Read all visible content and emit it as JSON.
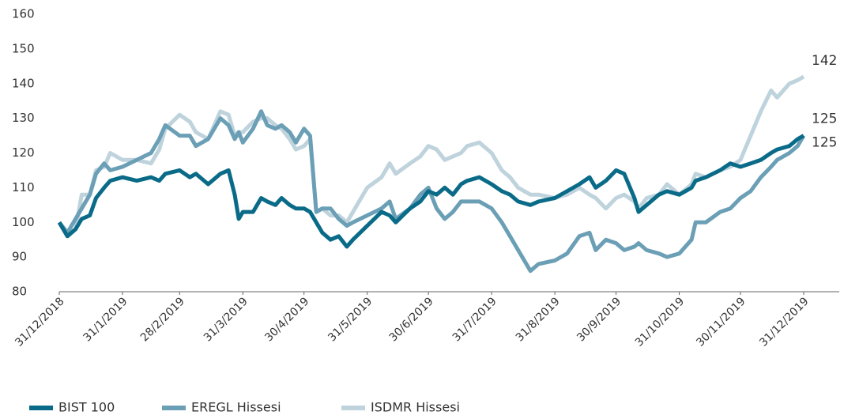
{
  "chart_data": {
    "type": "line",
    "x": [
      "31/12/2018",
      "4/1/2019",
      "8/1/2019",
      "11/1/2019",
      "15/1/2019",
      "18/1/2019",
      "22/1/2019",
      "25/1/2019",
      "31/1/2019",
      "7/2/2019",
      "14/2/2019",
      "18/2/2019",
      "21/2/2019",
      "28/2/2019",
      "5/3/2019",
      "8/3/2019",
      "14/3/2019",
      "20/3/2019",
      "24/3/2019",
      "27/3/2019",
      "29/3/2019",
      "31/3/2019",
      "5/4/2019",
      "9/4/2019",
      "12/4/2019",
      "16/4/2019",
      "19/4/2019",
      "23/4/2019",
      "26/4/2019",
      "30/4/2019",
      "3/5/2019",
      "6/5/2019",
      "9/5/2019",
      "13/5/2019",
      "17/5/2019",
      "21/5/2019",
      "24/5/2019",
      "31/5/2019",
      "7/6/2019",
      "11/6/2019",
      "14/6/2019",
      "21/6/2019",
      "26/6/2019",
      "30/6/2019",
      "4/7/2019",
      "8/7/2019",
      "12/7/2019",
      "16/7/2019",
      "19/7/2019",
      "25/7/2019",
      "31/7/2019",
      "5/8/2019",
      "9/8/2019",
      "13/8/2019",
      "19/8/2019",
      "23/8/2019",
      "31/8/2019",
      "6/9/2019",
      "12/9/2019",
      "17/9/2019",
      "20/9/2019",
      "25/9/2019",
      "30/9/2019",
      "4/10/2019",
      "9/10/2019",
      "11/10/2019",
      "15/10/2019",
      "21/10/2019",
      "25/10/2019",
      "31/10/2019",
      "6/11/2019",
      "8/11/2019",
      "13/11/2019",
      "20/11/2019",
      "25/11/2019",
      "30/11/2019",
      "5/12/2019",
      "10/12/2019",
      "15/12/2019",
      "18/12/2019",
      "24/12/2019",
      "28/12/2019",
      "31/12/2019"
    ],
    "series": [
      {
        "name": "BIST 100",
        "color": "#0a6b88",
        "values": [
          100,
          96,
          98,
          101,
          102,
          107,
          110,
          112,
          113,
          112,
          113,
          112,
          114,
          115,
          113,
          114,
          111,
          114,
          115,
          108,
          101,
          103,
          103,
          107,
          106,
          105,
          107,
          105,
          104,
          104,
          103,
          100,
          97,
          95,
          96,
          93,
          95,
          99,
          103,
          102,
          100,
          104,
          106,
          109,
          108,
          110,
          108,
          111,
          112,
          113,
          111,
          109,
          108,
          106,
          105,
          106,
          107,
          109,
          111,
          113,
          110,
          112,
          115,
          114,
          107,
          103,
          105,
          108,
          109,
          108,
          110,
          112,
          113,
          115,
          117,
          116,
          117,
          118,
          120,
          121,
          122,
          124,
          125
        ]
      },
      {
        "name": "EREGL Hissesi",
        "color": "#6b9fb6",
        "values": [
          100,
          97,
          101,
          104,
          108,
          114,
          117,
          115,
          116,
          118,
          120,
          124,
          128,
          125,
          125,
          122,
          124,
          130,
          128,
          124,
          126,
          123,
          127,
          132,
          128,
          127,
          128,
          126,
          123,
          127,
          125,
          103,
          104,
          104,
          101,
          99,
          100,
          102,
          104,
          106,
          101,
          104,
          108,
          110,
          104,
          101,
          103,
          106,
          106,
          106,
          104,
          100,
          96,
          92,
          86,
          88,
          89,
          91,
          96,
          97,
          92,
          95,
          94,
          92,
          93,
          94,
          92,
          91,
          90,
          91,
          95,
          100,
          100,
          103,
          104,
          107,
          109,
          113,
          116,
          118,
          120,
          122,
          125
        ]
      },
      {
        "name": "ISDMR Hissesi",
        "color": "#bfd3dd",
        "values": [
          100,
          97,
          98,
          108,
          108,
          115,
          116,
          120,
          118,
          118,
          117,
          121,
          127,
          131,
          129,
          126,
          124,
          132,
          131,
          125,
          126,
          126,
          129,
          130,
          130,
          128,
          127,
          124,
          121,
          122,
          124,
          103,
          104,
          102,
          102,
          100,
          103,
          110,
          113,
          117,
          114,
          117,
          119,
          122,
          121,
          118,
          119,
          120,
          122,
          123,
          120,
          115,
          113,
          110,
          108,
          108,
          107,
          108,
          110,
          108,
          107,
          104,
          107,
          108,
          106,
          104,
          107,
          108,
          111,
          108,
          111,
          114,
          113,
          115,
          116,
          118,
          125,
          132,
          138,
          136,
          140,
          141,
          142
        ]
      }
    ],
    "annotations": [
      142,
      125,
      125
    ],
    "ylim": [
      80,
      160
    ],
    "yticks": [
      80,
      90,
      100,
      110,
      120,
      130,
      140,
      150,
      160
    ],
    "xticks": [
      "31/12/2018",
      "31/1/2019",
      "28/2/2019",
      "31/3/2019",
      "30/4/2019",
      "31/5/2019",
      "30/6/2019",
      "31/7/2019",
      "31/8/2019",
      "30/9/2019",
      "31/10/2019",
      "30/11/2019",
      "31/12/2019"
    ],
    "grid": false,
    "legend": "bottom"
  }
}
